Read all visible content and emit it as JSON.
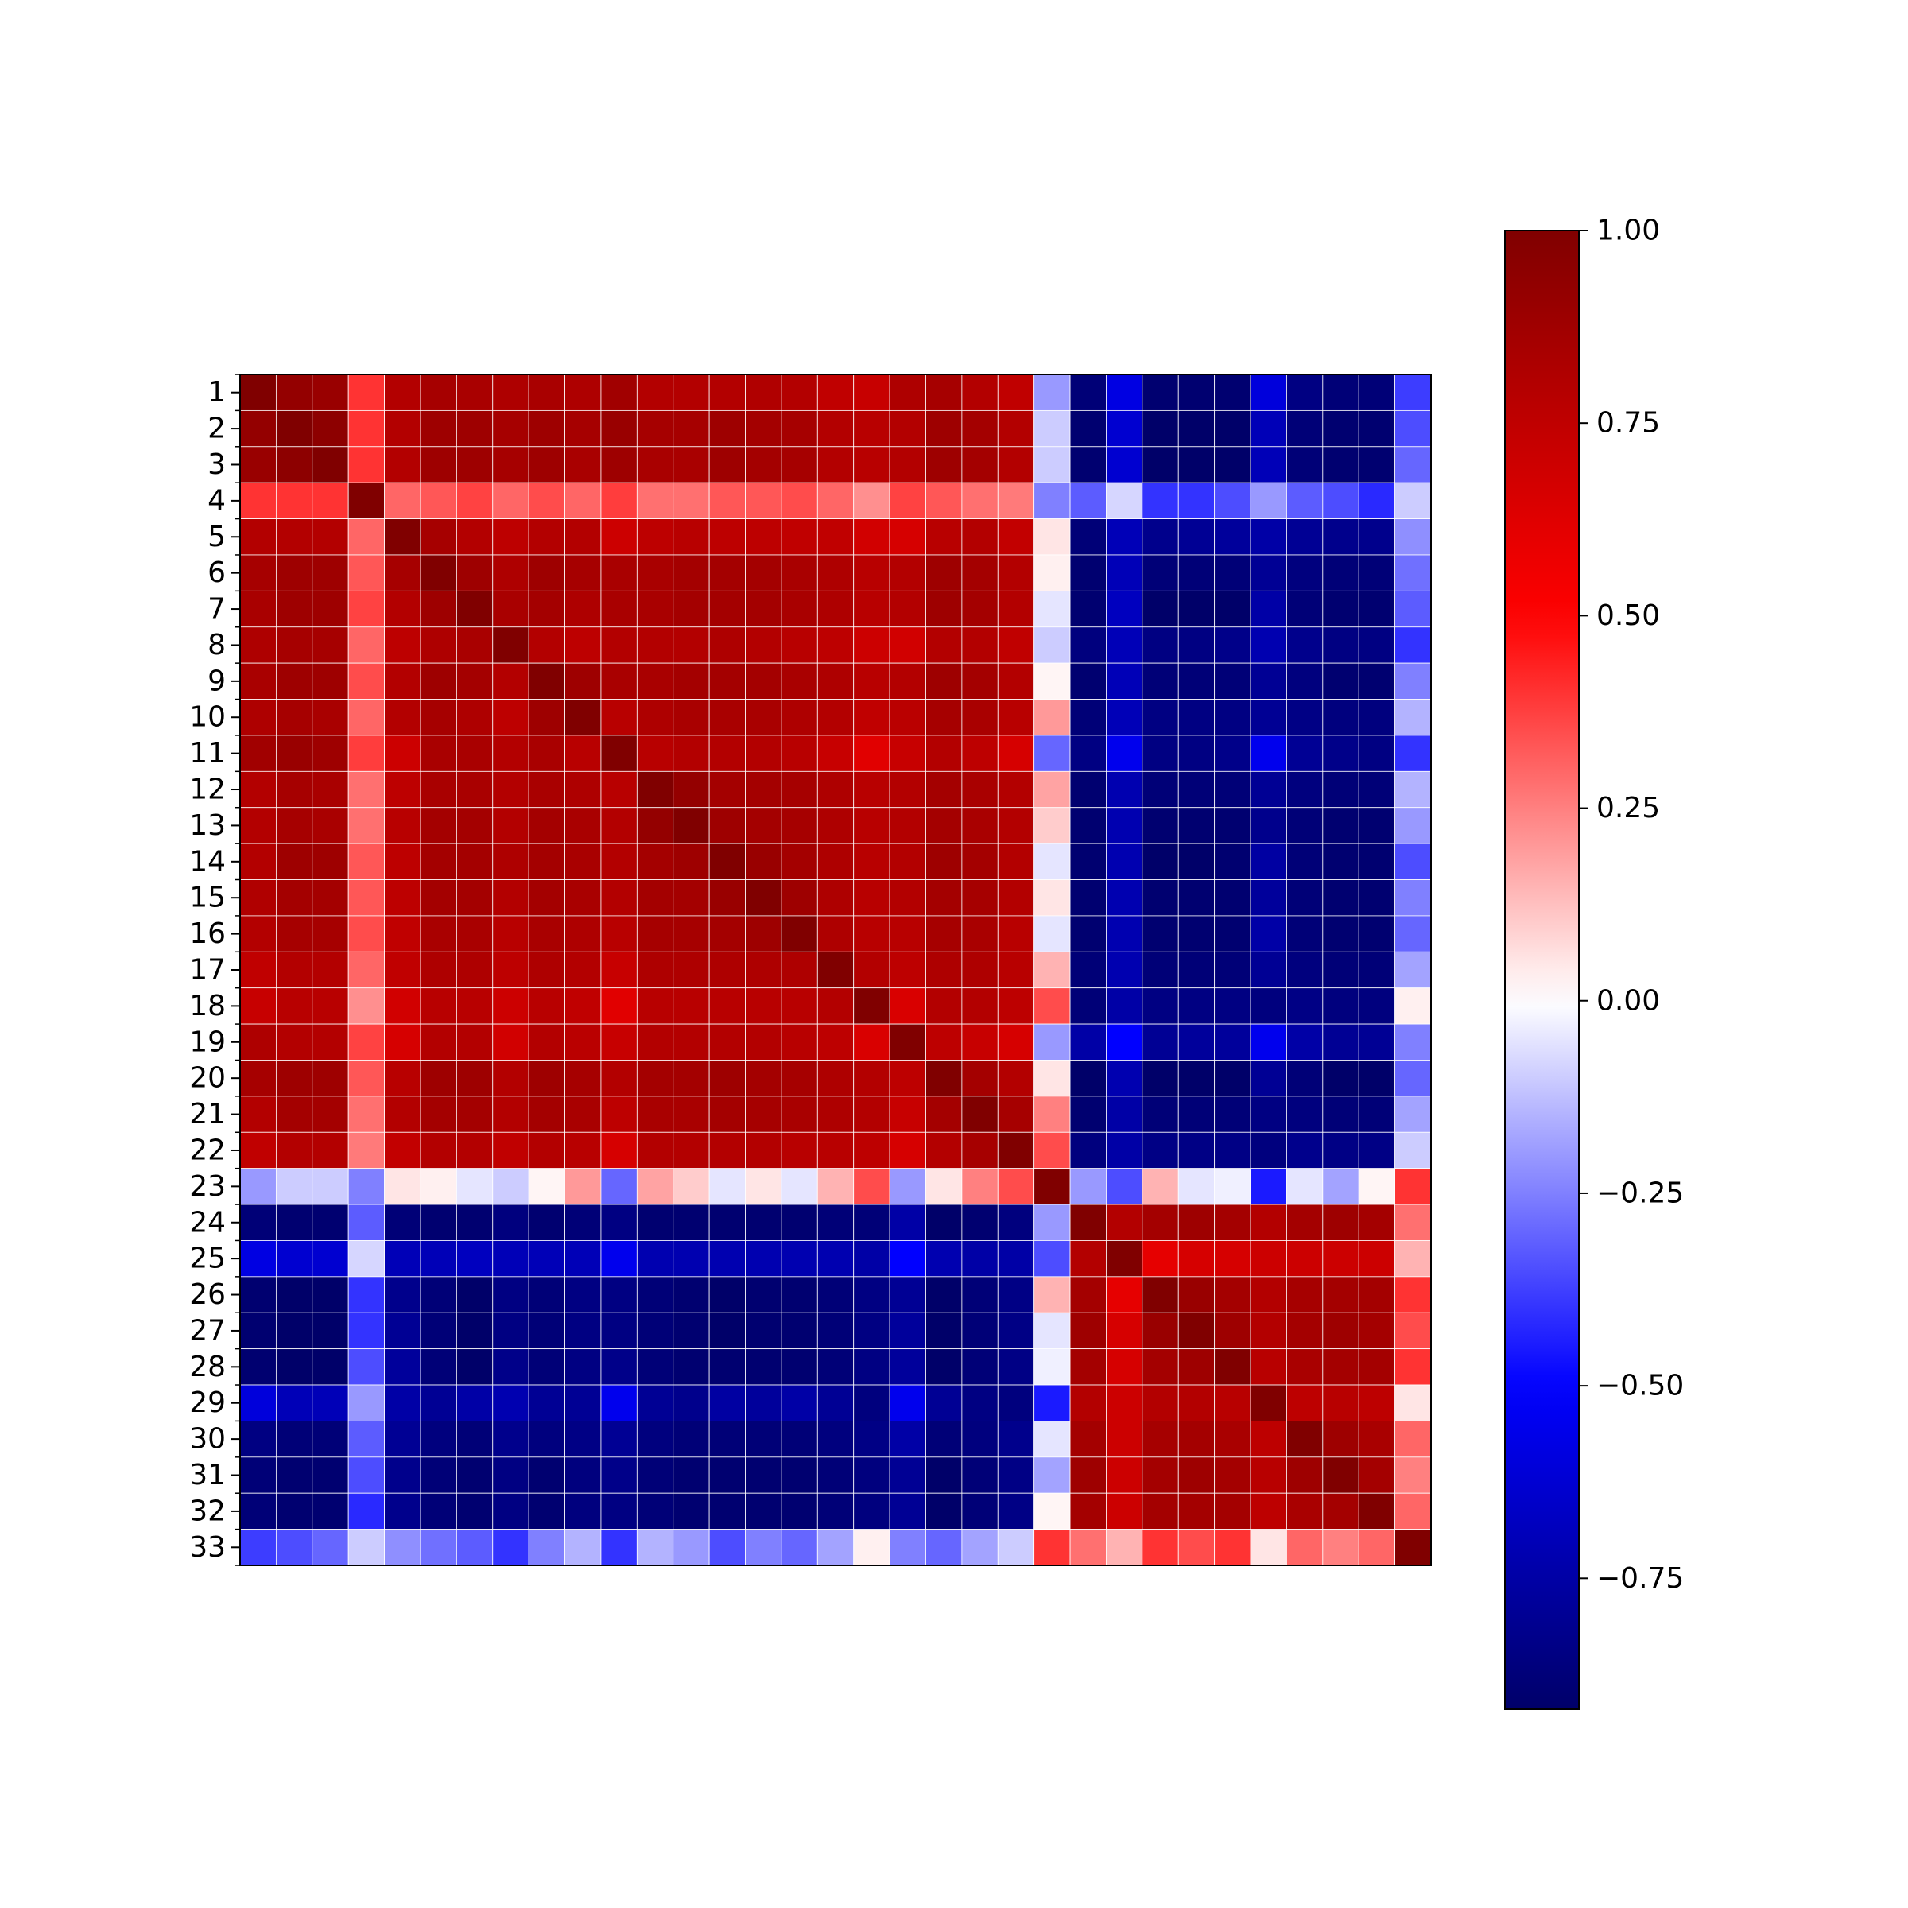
{
  "chart_data": {
    "type": "heatmap",
    "title": "",
    "xlabel": "",
    "ylabel": "",
    "row_labels": [
      "1",
      "2",
      "3",
      "4",
      "5",
      "6",
      "7",
      "8",
      "9",
      "10",
      "11",
      "12",
      "13",
      "14",
      "15",
      "16",
      "17",
      "18",
      "19",
      "20",
      "21",
      "22",
      "23",
      "24",
      "25",
      "26",
      "27",
      "28",
      "29",
      "30",
      "31",
      "32",
      "33"
    ],
    "colormap": "seismic",
    "colormap_stops": [
      "#00004c",
      "#0000ff",
      "#ffffff",
      "#ff0000",
      "#800000"
    ],
    "vmin": -0.92,
    "vmax": 1.0,
    "gridlines": "white",
    "colorbar": {
      "position": "right",
      "ticks": [
        1.0,
        0.75,
        0.5,
        0.25,
        0.0,
        -0.25,
        -0.5,
        -0.75
      ],
      "tick_labels": [
        "1.00",
        "0.75",
        "0.50",
        "0.25",
        "0.00",
        "−0.25",
        "−0.50",
        "−0.75"
      ]
    },
    "values": [
      [
        1.0,
        0.92,
        0.9,
        0.4,
        0.8,
        0.85,
        0.84,
        0.82,
        0.84,
        0.82,
        0.87,
        0.8,
        0.8,
        0.8,
        0.81,
        0.8,
        0.75,
        0.72,
        0.82,
        0.85,
        0.8,
        0.75,
        -0.2,
        -0.88,
        -0.58,
        -0.9,
        -0.9,
        -0.9,
        -0.6,
        -0.85,
        -0.88,
        -0.88,
        -0.38
      ],
      [
        0.92,
        1.0,
        0.95,
        0.4,
        0.8,
        0.88,
        0.88,
        0.85,
        0.88,
        0.85,
        0.9,
        0.85,
        0.85,
        0.88,
        0.86,
        0.85,
        0.8,
        0.78,
        0.8,
        0.88,
        0.86,
        0.8,
        -0.1,
        -0.9,
        -0.63,
        -0.92,
        -0.92,
        -0.92,
        -0.7,
        -0.88,
        -0.9,
        -0.9,
        -0.35
      ],
      [
        0.9,
        0.95,
        1.0,
        0.4,
        0.8,
        0.88,
        0.88,
        0.85,
        0.88,
        0.84,
        0.88,
        0.84,
        0.84,
        0.88,
        0.86,
        0.85,
        0.8,
        0.78,
        0.8,
        0.88,
        0.86,
        0.8,
        -0.1,
        -0.9,
        -0.63,
        -0.92,
        -0.92,
        -0.92,
        -0.7,
        -0.88,
        -0.9,
        -0.9,
        -0.3
      ],
      [
        0.4,
        0.4,
        0.4,
        1.0,
        0.3,
        0.33,
        0.37,
        0.3,
        0.35,
        0.3,
        0.38,
        0.28,
        0.28,
        0.33,
        0.33,
        0.35,
        0.3,
        0.22,
        0.37,
        0.33,
        0.28,
        0.26,
        -0.25,
        -0.32,
        -0.08,
        -0.4,
        -0.4,
        -0.35,
        -0.2,
        -0.32,
        -0.35,
        -0.42,
        -0.1
      ],
      [
        0.8,
        0.8,
        0.8,
        0.3,
        1.0,
        0.85,
        0.8,
        0.76,
        0.8,
        0.8,
        0.7,
        0.76,
        0.78,
        0.76,
        0.76,
        0.75,
        0.75,
        0.68,
        0.66,
        0.78,
        0.8,
        0.74,
        0.05,
        -0.88,
        -0.7,
        -0.82,
        -0.8,
        -0.78,
        -0.75,
        -0.8,
        -0.82,
        -0.82,
        -0.22
      ],
      [
        0.85,
        0.88,
        0.88,
        0.33,
        0.85,
        1.0,
        0.88,
        0.82,
        0.88,
        0.85,
        0.84,
        0.84,
        0.86,
        0.86,
        0.86,
        0.84,
        0.82,
        0.78,
        0.8,
        0.88,
        0.86,
        0.8,
        0.03,
        -0.9,
        -0.7,
        -0.88,
        -0.88,
        -0.88,
        -0.8,
        -0.86,
        -0.88,
        -0.88,
        -0.28
      ],
      [
        0.84,
        0.88,
        0.88,
        0.37,
        0.8,
        0.88,
        1.0,
        0.84,
        0.86,
        0.82,
        0.84,
        0.84,
        0.86,
        0.86,
        0.86,
        0.84,
        0.82,
        0.78,
        0.8,
        0.88,
        0.86,
        0.8,
        -0.05,
        -0.9,
        -0.68,
        -0.92,
        -0.92,
        -0.92,
        -0.75,
        -0.88,
        -0.9,
        -0.9,
        -0.32
      ],
      [
        0.82,
        0.85,
        0.85,
        0.3,
        0.76,
        0.82,
        0.84,
        1.0,
        0.8,
        0.76,
        0.8,
        0.8,
        0.8,
        0.82,
        0.8,
        0.78,
        0.76,
        0.7,
        0.68,
        0.8,
        0.8,
        0.75,
        -0.1,
        -0.86,
        -0.7,
        -0.85,
        -0.85,
        -0.83,
        -0.72,
        -0.82,
        -0.85,
        -0.85,
        -0.4
      ],
      [
        0.84,
        0.88,
        0.88,
        0.35,
        0.8,
        0.88,
        0.86,
        0.8,
        1.0,
        0.88,
        0.84,
        0.84,
        0.86,
        0.86,
        0.86,
        0.84,
        0.82,
        0.78,
        0.8,
        0.88,
        0.86,
        0.8,
        0.02,
        -0.9,
        -0.7,
        -0.88,
        -0.88,
        -0.88,
        -0.8,
        -0.86,
        -0.9,
        -0.9,
        -0.25
      ],
      [
        0.82,
        0.85,
        0.84,
        0.3,
        0.8,
        0.85,
        0.82,
        0.76,
        0.88,
        1.0,
        0.78,
        0.82,
        0.84,
        0.84,
        0.84,
        0.82,
        0.8,
        0.75,
        0.77,
        0.85,
        0.84,
        0.78,
        0.2,
        -0.88,
        -0.7,
        -0.85,
        -0.85,
        -0.85,
        -0.8,
        -0.84,
        -0.86,
        -0.86,
        -0.15
      ],
      [
        0.87,
        0.9,
        0.88,
        0.38,
        0.7,
        0.84,
        0.84,
        0.8,
        0.84,
        0.78,
        1.0,
        0.78,
        0.8,
        0.8,
        0.8,
        0.78,
        0.72,
        0.62,
        0.72,
        0.8,
        0.76,
        0.66,
        -0.3,
        -0.85,
        -0.55,
        -0.85,
        -0.85,
        -0.83,
        -0.55,
        -0.8,
        -0.83,
        -0.85,
        -0.4
      ],
      [
        0.8,
        0.85,
        0.84,
        0.28,
        0.76,
        0.84,
        0.84,
        0.8,
        0.84,
        0.82,
        0.78,
        1.0,
        0.92,
        0.86,
        0.86,
        0.85,
        0.82,
        0.78,
        0.8,
        0.86,
        0.84,
        0.8,
        0.18,
        -0.9,
        -0.72,
        -0.88,
        -0.88,
        -0.88,
        -0.8,
        -0.86,
        -0.88,
        -0.88,
        -0.15
      ],
      [
        0.8,
        0.85,
        0.84,
        0.28,
        0.78,
        0.86,
        0.86,
        0.8,
        0.86,
        0.84,
        0.8,
        0.92,
        1.0,
        0.88,
        0.86,
        0.85,
        0.82,
        0.78,
        0.8,
        0.86,
        0.84,
        0.8,
        0.1,
        -0.9,
        -0.72,
        -0.9,
        -0.9,
        -0.9,
        -0.82,
        -0.88,
        -0.9,
        -0.9,
        -0.2
      ],
      [
        0.8,
        0.88,
        0.88,
        0.33,
        0.76,
        0.86,
        0.86,
        0.82,
        0.86,
        0.84,
        0.8,
        0.86,
        0.88,
        1.0,
        0.9,
        0.86,
        0.82,
        0.78,
        0.8,
        0.88,
        0.86,
        0.8,
        -0.05,
        -0.9,
        -0.72,
        -0.92,
        -0.92,
        -0.9,
        -0.76,
        -0.88,
        -0.9,
        -0.9,
        -0.35
      ],
      [
        0.81,
        0.86,
        0.86,
        0.33,
        0.76,
        0.86,
        0.86,
        0.8,
        0.86,
        0.84,
        0.8,
        0.86,
        0.86,
        0.9,
        1.0,
        0.88,
        0.82,
        0.78,
        0.8,
        0.86,
        0.85,
        0.8,
        0.05,
        -0.9,
        -0.72,
        -0.9,
        -0.9,
        -0.9,
        -0.78,
        -0.88,
        -0.9,
        -0.9,
        -0.25
      ],
      [
        0.8,
        0.85,
        0.85,
        0.35,
        0.75,
        0.84,
        0.84,
        0.78,
        0.84,
        0.82,
        0.78,
        0.85,
        0.85,
        0.86,
        0.88,
        1.0,
        0.82,
        0.78,
        0.78,
        0.85,
        0.84,
        0.78,
        -0.05,
        -0.9,
        -0.72,
        -0.9,
        -0.9,
        -0.9,
        -0.75,
        -0.88,
        -0.9,
        -0.9,
        -0.3
      ],
      [
        0.75,
        0.8,
        0.8,
        0.3,
        0.75,
        0.82,
        0.82,
        0.76,
        0.82,
        0.8,
        0.72,
        0.82,
        0.82,
        0.82,
        0.82,
        0.82,
        1.0,
        0.8,
        0.76,
        0.82,
        0.82,
        0.78,
        0.15,
        -0.88,
        -0.72,
        -0.88,
        -0.88,
        -0.88,
        -0.8,
        -0.86,
        -0.88,
        -0.88,
        -0.18
      ],
      [
        0.72,
        0.78,
        0.78,
        0.22,
        0.68,
        0.78,
        0.78,
        0.7,
        0.78,
        0.75,
        0.62,
        0.78,
        0.78,
        0.78,
        0.78,
        0.78,
        0.8,
        1.0,
        0.65,
        0.8,
        0.8,
        0.76,
        0.35,
        -0.88,
        -0.75,
        -0.85,
        -0.85,
        -0.85,
        -0.86,
        -0.84,
        -0.86,
        -0.86,
        0.03
      ],
      [
        0.82,
        0.8,
        0.8,
        0.37,
        0.66,
        0.8,
        0.8,
        0.68,
        0.8,
        0.77,
        0.72,
        0.8,
        0.8,
        0.8,
        0.8,
        0.78,
        0.76,
        0.65,
        1.0,
        0.76,
        0.72,
        0.66,
        -0.2,
        -0.75,
        -0.5,
        -0.8,
        -0.78,
        -0.78,
        -0.55,
        -0.75,
        -0.8,
        -0.8,
        -0.25
      ],
      [
        0.85,
        0.88,
        0.88,
        0.33,
        0.78,
        0.88,
        0.88,
        0.8,
        0.88,
        0.85,
        0.8,
        0.86,
        0.86,
        0.88,
        0.86,
        0.85,
        0.82,
        0.8,
        0.76,
        1.0,
        0.86,
        0.8,
        0.05,
        -0.92,
        -0.72,
        -0.92,
        -0.92,
        -0.92,
        -0.8,
        -0.88,
        -0.92,
        -0.92,
        -0.3
      ],
      [
        0.8,
        0.86,
        0.86,
        0.28,
        0.8,
        0.86,
        0.86,
        0.8,
        0.86,
        0.84,
        0.76,
        0.84,
        0.84,
        0.86,
        0.85,
        0.84,
        0.82,
        0.8,
        0.72,
        0.86,
        1.0,
        0.85,
        0.25,
        -0.9,
        -0.75,
        -0.88,
        -0.88,
        -0.88,
        -0.85,
        -0.86,
        -0.88,
        -0.88,
        -0.18
      ],
      [
        0.75,
        0.8,
        0.8,
        0.26,
        0.74,
        0.8,
        0.8,
        0.75,
        0.8,
        0.78,
        0.66,
        0.8,
        0.8,
        0.8,
        0.8,
        0.78,
        0.78,
        0.76,
        0.66,
        0.8,
        0.85,
        1.0,
        0.35,
        -0.86,
        -0.75,
        -0.84,
        -0.84,
        -0.84,
        -0.86,
        -0.82,
        -0.84,
        -0.84,
        -0.1
      ],
      [
        -0.2,
        -0.1,
        -0.1,
        -0.25,
        0.05,
        0.03,
        -0.05,
        -0.1,
        0.02,
        0.2,
        -0.3,
        0.18,
        0.1,
        -0.05,
        0.05,
        -0.05,
        0.15,
        0.35,
        -0.2,
        0.05,
        0.25,
        0.35,
        1.0,
        -0.2,
        -0.35,
        0.15,
        -0.05,
        -0.03,
        -0.45,
        -0.05,
        -0.18,
        0.02,
        0.4
      ],
      [
        -0.88,
        -0.9,
        -0.9,
        -0.32,
        -0.88,
        -0.9,
        -0.9,
        -0.86,
        -0.9,
        -0.88,
        -0.85,
        -0.9,
        -0.9,
        -0.9,
        -0.9,
        -0.9,
        -0.88,
        -0.88,
        -0.75,
        -0.92,
        -0.9,
        -0.86,
        -0.2,
        1.0,
        0.8,
        0.86,
        0.88,
        0.86,
        0.8,
        0.86,
        0.88,
        0.86,
        0.28
      ],
      [
        -0.58,
        -0.63,
        -0.63,
        -0.08,
        -0.7,
        -0.7,
        -0.68,
        -0.7,
        -0.7,
        -0.7,
        -0.55,
        -0.72,
        -0.72,
        -0.72,
        -0.72,
        -0.72,
        -0.72,
        -0.75,
        -0.5,
        -0.72,
        -0.75,
        -0.75,
        -0.35,
        0.8,
        1.0,
        0.6,
        0.66,
        0.66,
        0.7,
        0.7,
        0.7,
        0.7,
        0.15
      ],
      [
        -0.9,
        -0.92,
        -0.92,
        -0.4,
        -0.82,
        -0.88,
        -0.92,
        -0.85,
        -0.88,
        -0.85,
        -0.85,
        -0.88,
        -0.9,
        -0.92,
        -0.9,
        -0.9,
        -0.88,
        -0.85,
        -0.8,
        -0.92,
        -0.88,
        -0.84,
        0.15,
        0.86,
        0.6,
        1.0,
        0.9,
        0.86,
        0.8,
        0.85,
        0.86,
        0.86,
        0.4
      ],
      [
        -0.9,
        -0.92,
        -0.92,
        -0.4,
        -0.8,
        -0.88,
        -0.92,
        -0.85,
        -0.88,
        -0.85,
        -0.85,
        -0.88,
        -0.9,
        -0.92,
        -0.9,
        -0.9,
        -0.88,
        -0.85,
        -0.78,
        -0.92,
        -0.88,
        -0.84,
        -0.05,
        0.88,
        0.66,
        0.9,
        1.0,
        0.88,
        0.8,
        0.86,
        0.88,
        0.86,
        0.35
      ],
      [
        -0.9,
        -0.92,
        -0.92,
        -0.35,
        -0.78,
        -0.88,
        -0.92,
        -0.83,
        -0.88,
        -0.85,
        -0.83,
        -0.88,
        -0.9,
        -0.9,
        -0.9,
        -0.9,
        -0.88,
        -0.85,
        -0.78,
        -0.92,
        -0.88,
        -0.84,
        -0.03,
        0.86,
        0.66,
        0.86,
        0.88,
        1.0,
        0.78,
        0.84,
        0.86,
        0.86,
        0.4
      ],
      [
        -0.6,
        -0.7,
        -0.7,
        -0.2,
        -0.75,
        -0.8,
        -0.75,
        -0.72,
        -0.8,
        -0.8,
        -0.55,
        -0.8,
        -0.82,
        -0.76,
        -0.78,
        -0.75,
        -0.8,
        -0.86,
        -0.55,
        -0.8,
        -0.85,
        -0.86,
        -0.45,
        0.8,
        0.7,
        0.8,
        0.8,
        0.78,
        1.0,
        0.76,
        0.78,
        0.76,
        0.05
      ],
      [
        -0.85,
        -0.88,
        -0.88,
        -0.32,
        -0.8,
        -0.86,
        -0.88,
        -0.82,
        -0.86,
        -0.84,
        -0.8,
        -0.86,
        -0.88,
        -0.88,
        -0.88,
        -0.88,
        -0.86,
        -0.84,
        -0.75,
        -0.88,
        -0.86,
        -0.82,
        -0.05,
        0.86,
        0.7,
        0.85,
        0.86,
        0.84,
        0.76,
        1.0,
        0.88,
        0.84,
        0.3
      ],
      [
        -0.88,
        -0.9,
        -0.9,
        -0.35,
        -0.82,
        -0.88,
        -0.9,
        -0.85,
        -0.9,
        -0.86,
        -0.83,
        -0.88,
        -0.9,
        -0.9,
        -0.9,
        -0.9,
        -0.88,
        -0.86,
        -0.8,
        -0.92,
        -0.88,
        -0.84,
        -0.18,
        0.88,
        0.7,
        0.86,
        0.88,
        0.86,
        0.78,
        0.88,
        1.0,
        0.86,
        0.25
      ],
      [
        -0.88,
        -0.9,
        -0.9,
        -0.42,
        -0.82,
        -0.88,
        -0.9,
        -0.85,
        -0.9,
        -0.86,
        -0.85,
        -0.88,
        -0.9,
        -0.9,
        -0.9,
        -0.9,
        -0.88,
        -0.86,
        -0.8,
        -0.92,
        -0.88,
        -0.84,
        0.02,
        0.86,
        0.7,
        0.86,
        0.86,
        0.86,
        0.76,
        0.84,
        0.86,
        1.0,
        0.3
      ],
      [
        -0.38,
        -0.35,
        -0.3,
        -0.1,
        -0.22,
        -0.28,
        -0.32,
        -0.4,
        -0.25,
        -0.15,
        -0.4,
        -0.15,
        -0.2,
        -0.35,
        -0.25,
        -0.3,
        -0.18,
        0.03,
        -0.25,
        -0.3,
        -0.18,
        -0.1,
        0.4,
        0.28,
        0.15,
        0.4,
        0.35,
        0.4,
        0.05,
        0.3,
        0.25,
        0.3,
        1.0
      ]
    ]
  }
}
